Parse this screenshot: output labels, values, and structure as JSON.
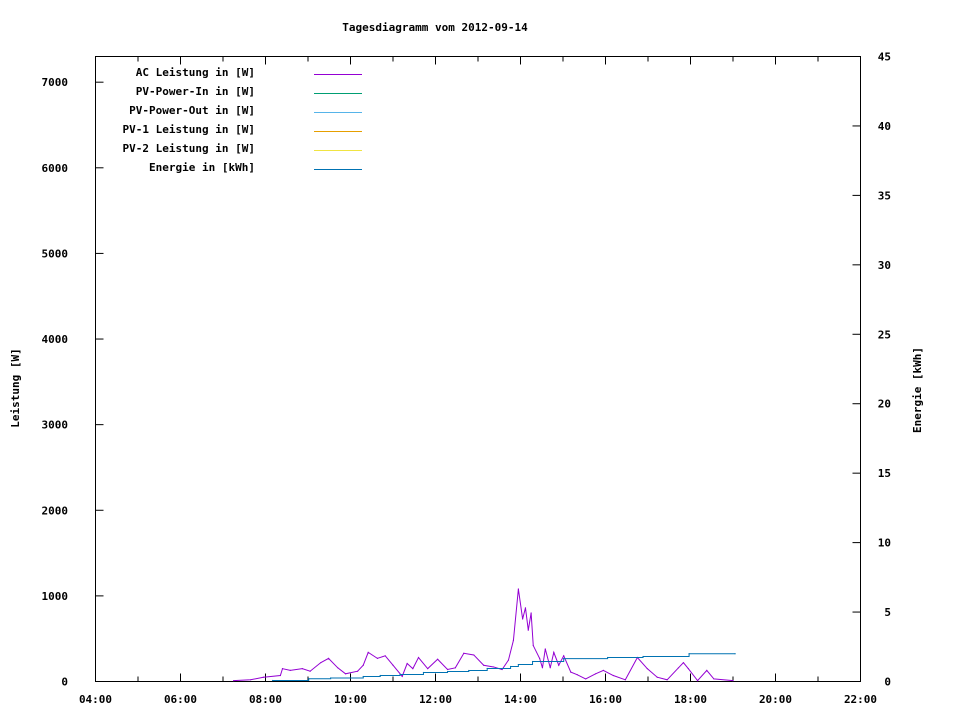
{
  "chart_data": {
    "type": "line",
    "title": "Tagesdiagramm vom 2012-09-14",
    "xlabel": "",
    "ylabel": "Leistung [W]",
    "y2label": "Energie [kWh]",
    "xlim": [
      "04:00",
      "22:00"
    ],
    "ylim": [
      0,
      7300
    ],
    "y2lim": [
      0,
      45
    ],
    "x_ticks": [
      "04:00",
      "06:00",
      "08:00",
      "10:00",
      "12:00",
      "14:00",
      "16:00",
      "18:00",
      "20:00",
      "22:00"
    ],
    "y_ticks": [
      0,
      1000,
      2000,
      3000,
      4000,
      5000,
      6000,
      7000
    ],
    "y2_ticks": [
      0,
      5,
      10,
      15,
      20,
      25,
      30,
      35,
      40,
      45
    ],
    "grid": false,
    "legend_position": "top-left",
    "series": [
      {
        "name": "AC Leistung in [W]",
        "axis": "y",
        "color": "#9400d3",
        "x": [
          "07:15",
          "07:39",
          "07:57",
          "08:21",
          "08:24",
          "08:35",
          "08:52",
          "09:03",
          "09:18",
          "09:29",
          "09:42",
          "09:53",
          "10:10",
          "10:18",
          "10:25",
          "10:38",
          "10:49",
          "11:00",
          "11:13",
          "11:20",
          "11:28",
          "11:36",
          "11:49",
          "12:03",
          "12:17",
          "12:28",
          "12:40",
          "12:54",
          "13:08",
          "13:22",
          "13:34",
          "13:43",
          "13:50",
          "13:57",
          "14:03",
          "14:07",
          "14:11",
          "14:15",
          "14:18",
          "14:27",
          "14:31",
          "14:35",
          "14:42",
          "14:47",
          "14:54",
          "15:01",
          "15:11",
          "15:20",
          "15:32",
          "15:46",
          "15:57",
          "16:11",
          "16:28",
          "16:45",
          "16:59",
          "17:13",
          "17:27",
          "17:43",
          "17:50",
          "17:57",
          "18:10",
          "18:23",
          "18:33",
          "19:00"
        ],
        "values": [
          10,
          20,
          50,
          70,
          150,
          130,
          150,
          120,
          220,
          270,
          160,
          90,
          120,
          190,
          340,
          270,
          300,
          190,
          60,
          210,
          150,
          280,
          150,
          260,
          140,
          160,
          330,
          310,
          190,
          170,
          140,
          250,
          480,
          1080,
          730,
          860,
          600,
          800,
          420,
          270,
          160,
          380,
          160,
          340,
          190,
          300,
          110,
          80,
          30,
          90,
          130,
          70,
          20,
          280,
          150,
          50,
          20,
          160,
          220,
          150,
          10,
          130,
          30,
          10
        ]
      },
      {
        "name": "PV-Power-In in [W]",
        "axis": "y",
        "color": "#009e73",
        "x": [],
        "values": []
      },
      {
        "name": "PV-Power-Out in [W]",
        "axis": "y",
        "color": "#56b4e9",
        "x": [],
        "values": []
      },
      {
        "name": "PV-1 Leistung in [W]",
        "axis": "y",
        "color": "#e69f00",
        "x": [],
        "values": []
      },
      {
        "name": "PV-2 Leistung in [W]",
        "axis": "y",
        "color": "#f0e442",
        "x": [],
        "values": []
      },
      {
        "name": "Energie in [kWh]",
        "axis": "y2",
        "color": "#0072b2",
        "step": true,
        "x": [
          "08:10",
          "09:01",
          "09:32",
          "10:18",
          "10:42",
          "11:10",
          "11:43",
          "12:17",
          "12:47",
          "13:13",
          "13:46",
          "13:57",
          "14:17",
          "15:01",
          "16:03",
          "16:53",
          "17:58",
          "19:03"
        ],
        "values": [
          0.07,
          0.2,
          0.25,
          0.36,
          0.43,
          0.5,
          0.65,
          0.72,
          0.79,
          0.94,
          1.08,
          1.22,
          1.44,
          1.65,
          1.73,
          1.8,
          2.0,
          2.0
        ]
      }
    ]
  }
}
